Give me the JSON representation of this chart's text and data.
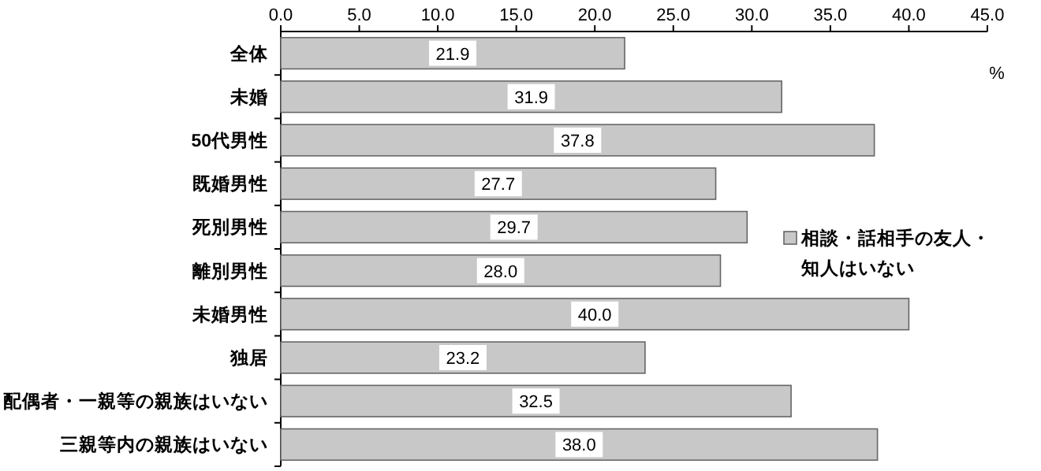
{
  "chart_data": {
    "type": "bar",
    "orientation": "horizontal",
    "xlabel": "%",
    "categories": [
      "全体",
      "未婚",
      "50代男性",
      "既婚男性",
      "死別男性",
      "離別男性",
      "未婚男性",
      "独居",
      "配偶者・一親等の親族はいない",
      "三親等内の親族はいない"
    ],
    "series": [
      {
        "name": "相談・話相手の友人・知人はいない",
        "color": "#c8c8c8",
        "values": [
          21.9,
          31.9,
          37.8,
          27.7,
          29.7,
          28.0,
          40.0,
          23.2,
          32.5,
          38.0
        ],
        "value_labels": [
          "21.9",
          "31.9",
          "37.8",
          "27.7",
          "29.7",
          "28.0",
          "40.0",
          "23.2",
          "32.5",
          "38.0"
        ]
      }
    ],
    "xlim": [
      0,
      45
    ],
    "xticks": [
      {
        "value": 0,
        "label": "0.0"
      },
      {
        "value": 5,
        "label": "5.0"
      },
      {
        "value": 10,
        "label": "10.0"
      },
      {
        "value": 15,
        "label": "15.0"
      },
      {
        "value": 20,
        "label": "20.0"
      },
      {
        "value": 25,
        "label": "25.0"
      },
      {
        "value": 30,
        "label": "30.0"
      },
      {
        "value": 35,
        "label": "35.0"
      },
      {
        "value": 40,
        "label": "40.0"
      },
      {
        "value": 45,
        "label": "45.0"
      }
    ],
    "legend": "right",
    "grid": false
  }
}
